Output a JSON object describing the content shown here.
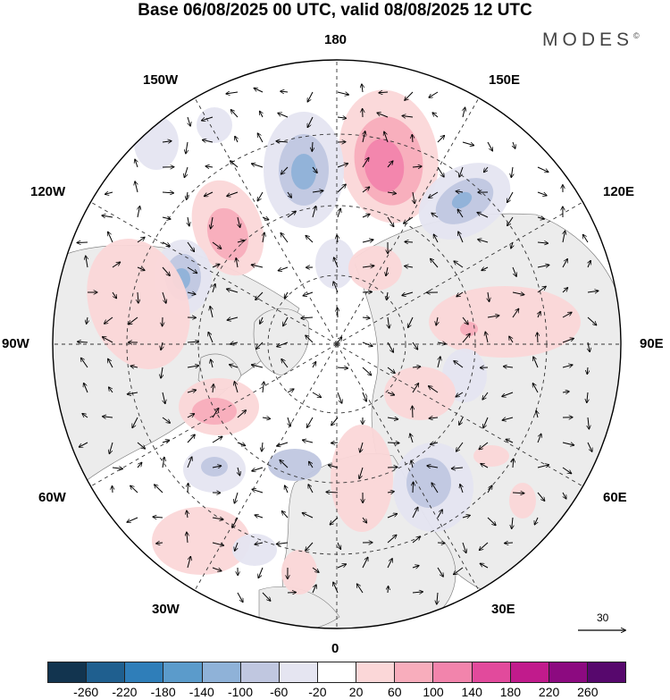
{
  "title": "Base 06/08/2025 00 UTC, valid 08/08/2025 12 UTC",
  "brand": "MODES",
  "brand_mark": "©",
  "longitude_labels": {
    "lon_180": "180",
    "lon_150w": "150W",
    "lon_150e": "150E",
    "lon_120w": "120W",
    "lon_120e": "120E",
    "lon_90w": "90W",
    "lon_90e": "90E",
    "lon_60w": "60W",
    "lon_60e": "60E",
    "lon_30w": "30W",
    "lon_30e": "30E",
    "lon_0": "0"
  },
  "reference_vector": {
    "label": "30"
  },
  "colorbar": {
    "ticks": [
      "-260",
      "-220",
      "-180",
      "-140",
      "-100",
      "-60",
      "-20",
      "20",
      "60",
      "100",
      "140",
      "180",
      "220",
      "260"
    ],
    "colors": [
      "#12344f",
      "#1f5f8f",
      "#2f7eb9",
      "#5b9bcb",
      "#8fb2d8",
      "#c0c7e0",
      "#e5e5f1",
      "#ffffff",
      "#fbd7d8",
      "#f8adbc",
      "#f284ac",
      "#e24a9c",
      "#c11b8c",
      "#8c0a80",
      "#57086d"
    ]
  },
  "anomaly_colors": {
    "neg_weak": "#e5e5f1",
    "neg_mid": "#c0c7e0",
    "neg_strong": "#8fb2d8",
    "neg_core": "#5b9bcb",
    "pos_weak": "#fbd7d8",
    "pos_mid": "#f8adbc",
    "pos_strong": "#f284ac",
    "land": "#ececec"
  }
}
